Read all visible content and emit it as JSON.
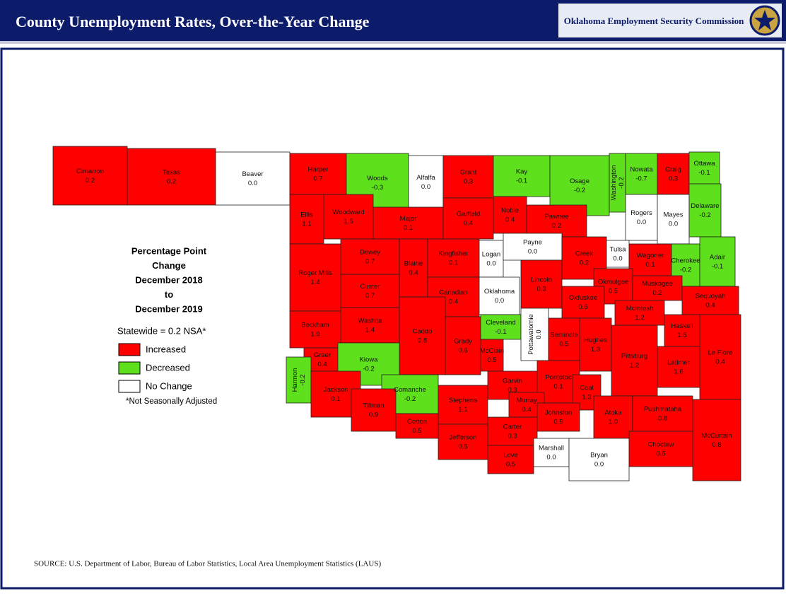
{
  "header": {
    "title": "County Unemployment Rates, Over-the-Year Change",
    "organization": "Oklahoma Employment Security Commission"
  },
  "legend": {
    "title_lines": [
      "Percentage Point",
      "Change",
      "December 2018",
      "to",
      "December 2019"
    ],
    "statewide": "Statewide = 0.2 NSA*",
    "items": [
      {
        "label": "Increased",
        "color": "#ff0000"
      },
      {
        "label": "Decreased",
        "color": "#5ee01c"
      },
      {
        "label": "No Change",
        "color": "#ffffff"
      }
    ],
    "footnote": "*Not Seasonally Adjusted"
  },
  "counties": [
    {
      "name": "Cimarron",
      "value": 0.2
    },
    {
      "name": "Texas",
      "value": 0.2
    },
    {
      "name": "Beaver",
      "value": 0,
      "value_label": "0.0"
    },
    {
      "name": "Harper",
      "value": 0.7
    },
    {
      "name": "Woods",
      "value": -0.3
    },
    {
      "name": "Alfalfa",
      "value": 0,
      "value_label": "0.0"
    },
    {
      "name": "Grant",
      "value": 0.3
    },
    {
      "name": "Kay",
      "value": -0.1
    },
    {
      "name": "Osage",
      "value": -0.2
    },
    {
      "name": "Washington",
      "value": -0.2
    },
    {
      "name": "Nowata",
      "value": -0.7
    },
    {
      "name": "Craig",
      "value": 0.3
    },
    {
      "name": "Ottawa",
      "value": -0.1
    },
    {
      "name": "Ellis",
      "value": 1.1
    },
    {
      "name": "Woodward",
      "value": 1.5
    },
    {
      "name": "Major",
      "value": 0.1
    },
    {
      "name": "Garfield",
      "value": 0.4
    },
    {
      "name": "Noble",
      "value": 0.4
    },
    {
      "name": "Pawnee",
      "value": 0.2
    },
    {
      "name": "Rogers",
      "value": 0,
      "value_label": "0.0"
    },
    {
      "name": "Mayes",
      "value": 0,
      "value_label": "0.0"
    },
    {
      "name": "Delaware",
      "value": -0.2
    },
    {
      "name": "Roger Mills",
      "value": 1.4
    },
    {
      "name": "Dewey",
      "value": 0.7
    },
    {
      "name": "Blaine",
      "value": 0.4
    },
    {
      "name": "Kingfisher",
      "value": 0.1
    },
    {
      "name": "Logan",
      "value": 0,
      "value_label": "0.0"
    },
    {
      "name": "Payne",
      "value": 0,
      "value_label": "0.0"
    },
    {
      "name": "Creek",
      "value": 0.2
    },
    {
      "name": "Tulsa",
      "value": 0,
      "value_label": "0.0"
    },
    {
      "name": "Wagoner",
      "value": 0.1
    },
    {
      "name": "Cherokee",
      "value": -0.2
    },
    {
      "name": "Adair",
      "value": -0.1
    },
    {
      "name": "Custer",
      "value": 0.7
    },
    {
      "name": "Lincoln",
      "value": 0.3
    },
    {
      "name": "Canadian",
      "value": 0.4
    },
    {
      "name": "Oklahoma",
      "value": 0,
      "value_label": "0.0"
    },
    {
      "name": "Okmulgee",
      "value": 0.5
    },
    {
      "name": "Muskogee",
      "value": 0.2
    },
    {
      "name": "Sequoyah",
      "value": 0.4
    },
    {
      "name": "Beckham",
      "value": 1.9
    },
    {
      "name": "Washita",
      "value": 1.4
    },
    {
      "name": "Caddo",
      "value": 0.8
    },
    {
      "name": "Grady",
      "value": 0.6
    },
    {
      "name": "Cleveland",
      "value": -0.1
    },
    {
      "name": "Pottawatomie",
      "value": 0,
      "value_label": "0.0"
    },
    {
      "name": "Okfuskee",
      "value": 0.6
    },
    {
      "name": "McIntosh",
      "value": 1.2
    },
    {
      "name": "Haskell",
      "value": 1.5
    },
    {
      "name": "Seminole",
      "value": 0.5
    },
    {
      "name": "Hughes",
      "value": 1.3
    },
    {
      "name": "Greer",
      "value": 0.4
    },
    {
      "name": "Kiowa",
      "value": -0.2
    },
    {
      "name": "Harmon",
      "value": -0.2
    },
    {
      "name": "Jackson",
      "value": 0.1
    },
    {
      "name": "McClain",
      "value": 0.5
    },
    {
      "name": "Pittsburg",
      "value": 1.2
    },
    {
      "name": "Latimer",
      "value": 1.6
    },
    {
      "name": "Le Flore",
      "value": 0.4
    },
    {
      "name": "Comanche",
      "value": -0.2
    },
    {
      "name": "Tillman",
      "value": 0.9
    },
    {
      "name": "Cotton",
      "value": 0.5
    },
    {
      "name": "Stephens",
      "value": 1.1
    },
    {
      "name": "Garvin",
      "value": 0.3
    },
    {
      "name": "Pontotoc",
      "value": 0.1
    },
    {
      "name": "Coal",
      "value": 1.3
    },
    {
      "name": "Murray",
      "value": 0.4
    },
    {
      "name": "Carter",
      "value": 0.3
    },
    {
      "name": "Johnston",
      "value": 0.9
    },
    {
      "name": "Atoka",
      "value": 1,
      "value_label": "1.0"
    },
    {
      "name": "Pushmataha",
      "value": 0.8
    },
    {
      "name": "McCurtain",
      "value": 0.8
    },
    {
      "name": "Jefferson",
      "value": 0.5
    },
    {
      "name": "Love",
      "value": 0.5
    },
    {
      "name": "Marshall",
      "value": 0,
      "value_label": "0.0"
    },
    {
      "name": "Bryan",
      "value": 0,
      "value_label": "0.0"
    },
    {
      "name": "Choctaw",
      "value": 0.5
    }
  ],
  "source": "SOURCE: U.S. Department of Labor, Bureau of Labor Statistics, Local Area Unemployment Statistics (LAUS)"
}
